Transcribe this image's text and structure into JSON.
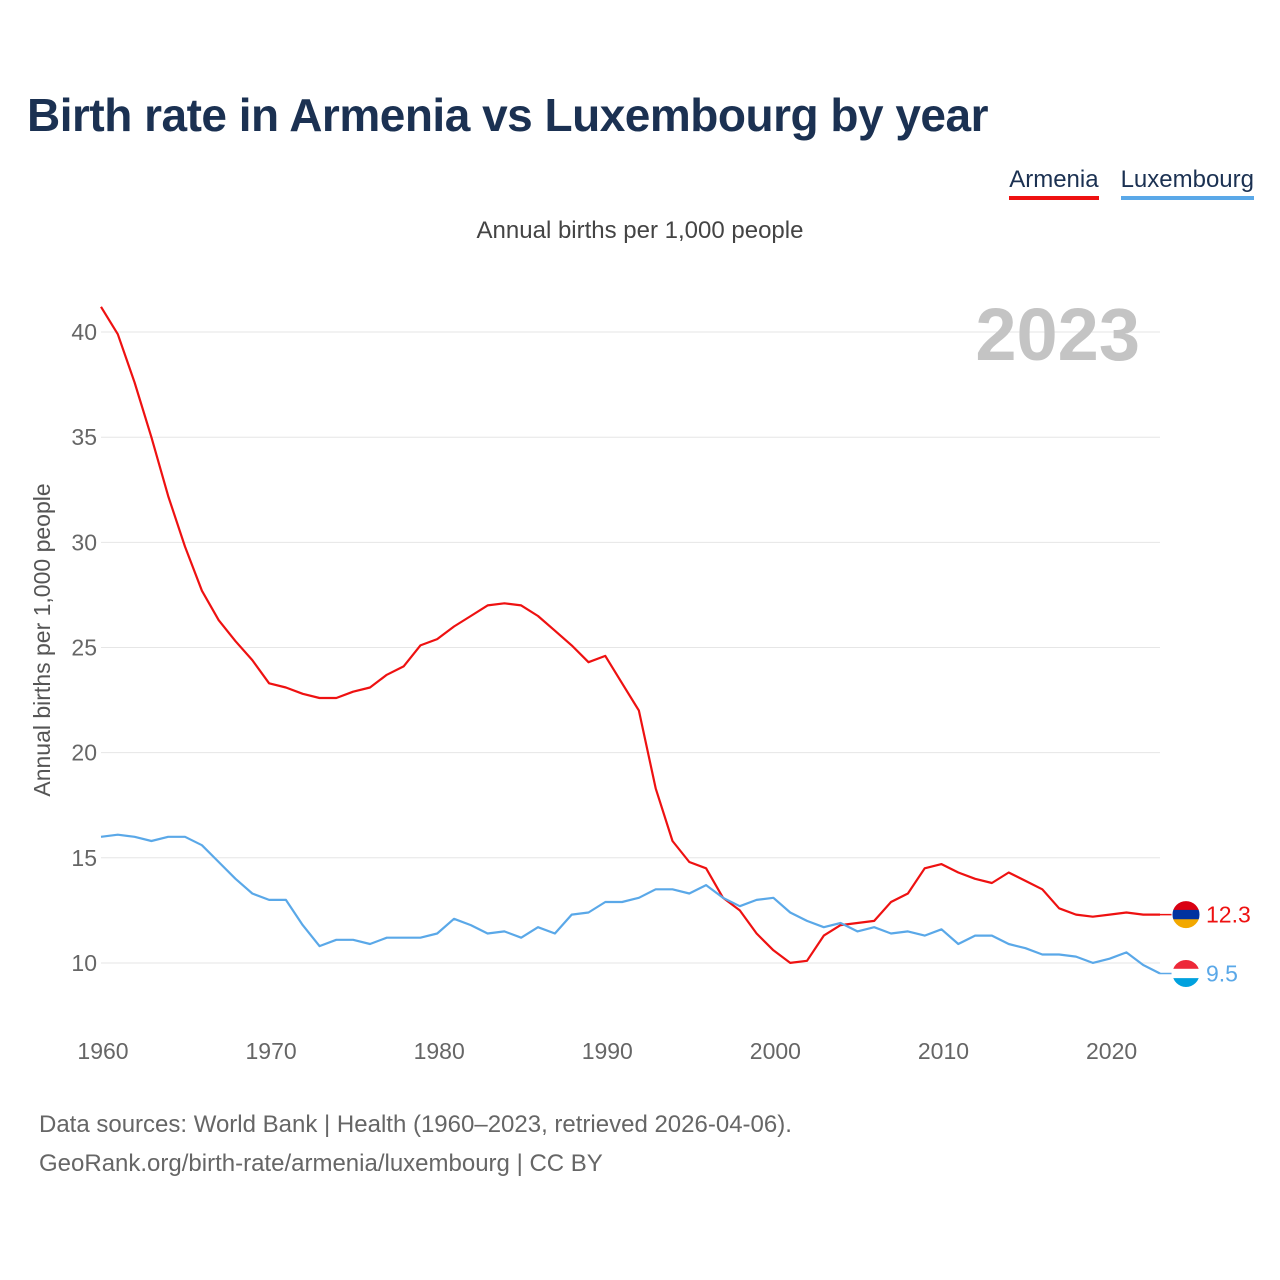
{
  "title": "Birth rate in Armenia vs Luxembourg by year",
  "subtitle": "Annual births per 1,000 people",
  "legend": [
    {
      "label": "Armenia",
      "color": "#ee1111"
    },
    {
      "label": "Luxembourg",
      "color": "#5aa8e8"
    }
  ],
  "footer": {
    "line1": "Data sources: World Bank | Health (1960–2023, retrieved 2026-04-06).",
    "line2": "GeoRank.org/birth-rate/armenia/luxembourg | CC BY"
  },
  "chart_data": {
    "type": "line",
    "title": "Birth rate in Armenia vs Luxembourg by year",
    "ylabel": "Annual births per 1,000 people",
    "xlabel": "",
    "year_overlay": "2023",
    "xlim": [
      1960,
      2023
    ],
    "ylim": [
      8,
      42
    ],
    "x_ticks": [
      1960,
      1970,
      1980,
      1990,
      2000,
      2010,
      2020
    ],
    "y_ticks": [
      10,
      15,
      20,
      25,
      30,
      35,
      40
    ],
    "grid": true,
    "x": [
      1960,
      1961,
      1962,
      1963,
      1964,
      1965,
      1966,
      1967,
      1968,
      1969,
      1970,
      1971,
      1972,
      1973,
      1974,
      1975,
      1976,
      1977,
      1978,
      1979,
      1980,
      1981,
      1982,
      1983,
      1984,
      1985,
      1986,
      1987,
      1988,
      1989,
      1990,
      1991,
      1992,
      1993,
      1994,
      1995,
      1996,
      1997,
      1998,
      1999,
      2000,
      2001,
      2002,
      2003,
      2004,
      2005,
      2006,
      2007,
      2008,
      2009,
      2010,
      2011,
      2012,
      2013,
      2014,
      2015,
      2016,
      2017,
      2018,
      2019,
      2020,
      2021,
      2022,
      2023
    ],
    "series": [
      {
        "name": "Armenia",
        "color": "#ee1111",
        "end_label": "12.3",
        "values": [
          41.2,
          39.9,
          37.6,
          35.0,
          32.2,
          29.8,
          27.7,
          26.3,
          25.3,
          24.4,
          23.3,
          23.1,
          22.8,
          22.6,
          22.6,
          22.9,
          23.1,
          23.7,
          24.1,
          25.1,
          25.4,
          26.0,
          26.5,
          27.0,
          27.1,
          27.0,
          26.5,
          25.8,
          25.1,
          24.3,
          24.6,
          23.3,
          22.0,
          18.3,
          15.8,
          14.8,
          14.5,
          13.1,
          12.5,
          11.4,
          10.6,
          10.0,
          10.1,
          11.3,
          11.8,
          11.9,
          12.0,
          12.9,
          13.3,
          14.5,
          14.7,
          14.3,
          14.0,
          13.8,
          14.3,
          13.9,
          13.5,
          12.6,
          12.3,
          12.2,
          12.3,
          12.4,
          12.3,
          12.3
        ]
      },
      {
        "name": "Luxembourg",
        "color": "#5aa8e8",
        "end_label": "9.5",
        "values": [
          16.0,
          16.1,
          16.0,
          15.8,
          16.0,
          16.0,
          15.6,
          14.8,
          14.0,
          13.3,
          13.0,
          13.0,
          11.8,
          10.8,
          11.1,
          11.1,
          10.9,
          11.2,
          11.2,
          11.2,
          11.4,
          12.1,
          11.8,
          11.4,
          11.5,
          11.2,
          11.7,
          11.4,
          12.3,
          12.4,
          12.9,
          12.9,
          13.1,
          13.5,
          13.5,
          13.3,
          13.7,
          13.1,
          12.7,
          13.0,
          13.1,
          12.4,
          12.0,
          11.7,
          11.9,
          11.5,
          11.7,
          11.4,
          11.5,
          11.3,
          11.6,
          10.9,
          11.3,
          11.3,
          10.9,
          10.7,
          10.4,
          10.4,
          10.3,
          10.0,
          10.2,
          10.5,
          9.9,
          9.5
        ]
      }
    ]
  }
}
